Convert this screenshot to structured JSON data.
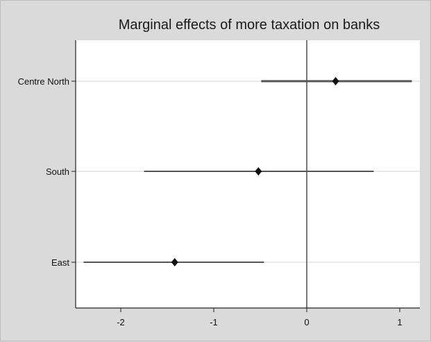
{
  "chart_data": {
    "type": "scatter",
    "title": "Marginal effects of more taxation on banks",
    "xlabel": "",
    "ylabel": "",
    "xlim": [
      -2.5,
      1.13
    ],
    "x_ticks": [
      -2,
      -1,
      0,
      1
    ],
    "x_tick_labels": [
      "-2",
      "-1",
      "0",
      "1"
    ],
    "reference_line_x": 0,
    "categories": [
      "Centre North",
      "South",
      "East"
    ],
    "series": [
      {
        "estimates": [
          0.31,
          -0.52,
          -1.42
        ],
        "ci_lower": [
          -0.49,
          -1.75,
          -2.4
        ],
        "ci_upper": [
          1.13,
          0.72,
          -0.46
        ]
      }
    ],
    "grid": true,
    "colors": {
      "background": "#dadada",
      "plot_area": "#ffffff",
      "marker": "#111111",
      "ci_line": "#555555",
      "grid": "#e3e3e3"
    }
  }
}
